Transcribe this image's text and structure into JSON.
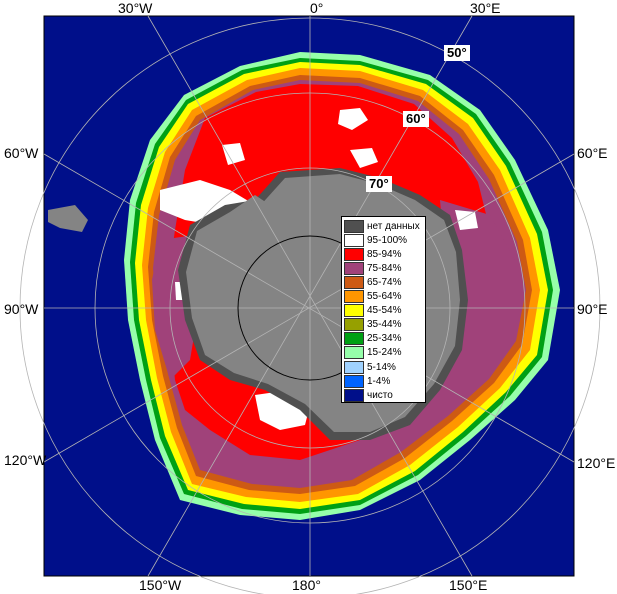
{
  "map": {
    "lon_labels": {
      "top_30w": "30°W",
      "top_0": "0°",
      "top_30e": "30°E",
      "left_60w": "60°W",
      "left_90w": "90°W",
      "left_120w": "120°W",
      "right_60e": "60°E",
      "right_90e": "90°E",
      "right_120e": "120°E",
      "bottom_150w": "150°W",
      "bottom_180": "180°",
      "bottom_150e": "150°E"
    },
    "lat_labels": {
      "lat50": "50°",
      "lat60": "60°",
      "lat70": "70°"
    },
    "colors": {
      "ocean": "#000f8a",
      "land": "#848484",
      "grid": "#b4b4b4",
      "ice_95_100": "#ffffff",
      "ice_85_94": "#ff0000",
      "ice_75_84": "#a0427a",
      "ice_65_74": "#cd5a14",
      "ice_55_64": "#ff9600",
      "ice_45_54": "#ffff00",
      "ice_35_44": "#96a000",
      "ice_25_34": "#00a014",
      "ice_15_24": "#96ffaa",
      "ice_5_14": "#a0d2ff",
      "ice_1_4": "#0064ff"
    }
  },
  "legend": {
    "items": [
      {
        "label": "нет данных",
        "color": "#505050"
      },
      {
        "label": "95-100%",
        "color": "#ffffff"
      },
      {
        "label": "85-94%",
        "color": "#ff0000"
      },
      {
        "label": "75-84%",
        "color": "#a0427a"
      },
      {
        "label": "65-74%",
        "color": "#cd5a14"
      },
      {
        "label": "55-64%",
        "color": "#ff9600"
      },
      {
        "label": "45-54%",
        "color": "#ffff00"
      },
      {
        "label": "35-44%",
        "color": "#96a000"
      },
      {
        "label": "25-34%",
        "color": "#00a014"
      },
      {
        "label": "15-24%",
        "color": "#96ffaa"
      },
      {
        "label": "5-14%",
        "color": "#a0d2ff"
      },
      {
        "label": "1-4%",
        "color": "#0064ff"
      },
      {
        "label": "чисто",
        "color": "#000f8a"
      }
    ]
  }
}
